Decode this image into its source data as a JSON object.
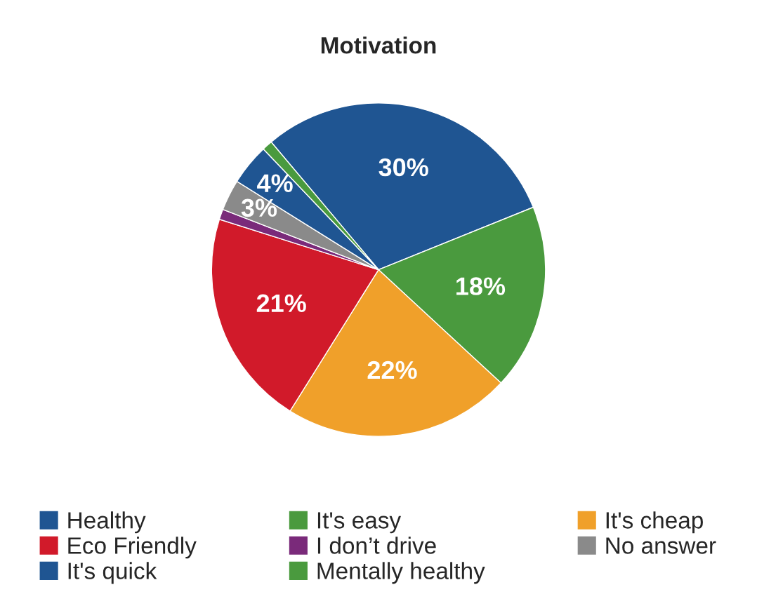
{
  "chart_data": {
    "type": "pie",
    "title": "Motivation",
    "categories": [
      "Healthy",
      "It's easy",
      "It's cheap",
      "Eco Friendly",
      "I don’t drive",
      "No answer",
      "It's quick",
      "Mentally healthy"
    ],
    "values": [
      30,
      18,
      22,
      21,
      1,
      3,
      4,
      1
    ],
    "value_labels": [
      "30%",
      "18%",
      "22%",
      "21%",
      null,
      "3%",
      "4%",
      null
    ],
    "colors": [
      "#1f5592",
      "#4a9a3e",
      "#f0a02a",
      "#d11a2a",
      "#7a2a7a",
      "#8a8a8a",
      "#1f5592",
      "#4a9a3e"
    ],
    "legend": "bottom"
  }
}
